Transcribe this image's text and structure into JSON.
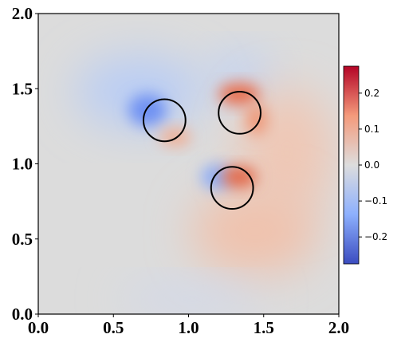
{
  "chart_data": {
    "type": "field",
    "xlim": [
      0,
      2
    ],
    "ylim": [
      0,
      2
    ],
    "xticks": [
      {
        "value": 0,
        "label": "0.0"
      },
      0.5,
      {
        "value": 1,
        "label": "1.0"
      },
      1.5,
      {
        "value": 2,
        "label": "2.0"
      }
    ],
    "yticks": [
      {
        "value": 0,
        "label": "0.0"
      },
      0.5,
      {
        "value": 1,
        "label": "1.0"
      },
      1.5,
      {
        "value": 2,
        "label": "2.0"
      }
    ],
    "colormap": "coolwarm",
    "clim": [
      -0.275,
      0.275
    ],
    "cticks": [
      {
        "value": -0.2,
        "label": "−0.2"
      },
      {
        "value": -0.1,
        "label": "−0.1"
      },
      {
        "value": 0,
        "label": "0.0"
      },
      {
        "value": 0.1,
        "label": "0.1"
      },
      {
        "value": 0.2,
        "label": "0.2"
      }
    ],
    "circles": {
      "x": [
        0.84,
        1.34,
        1.29
      ],
      "y": [
        1.29,
        1.34,
        0.84
      ],
      "r": [
        0.14,
        0.14,
        0.14
      ],
      "color": "#000000"
    }
  }
}
